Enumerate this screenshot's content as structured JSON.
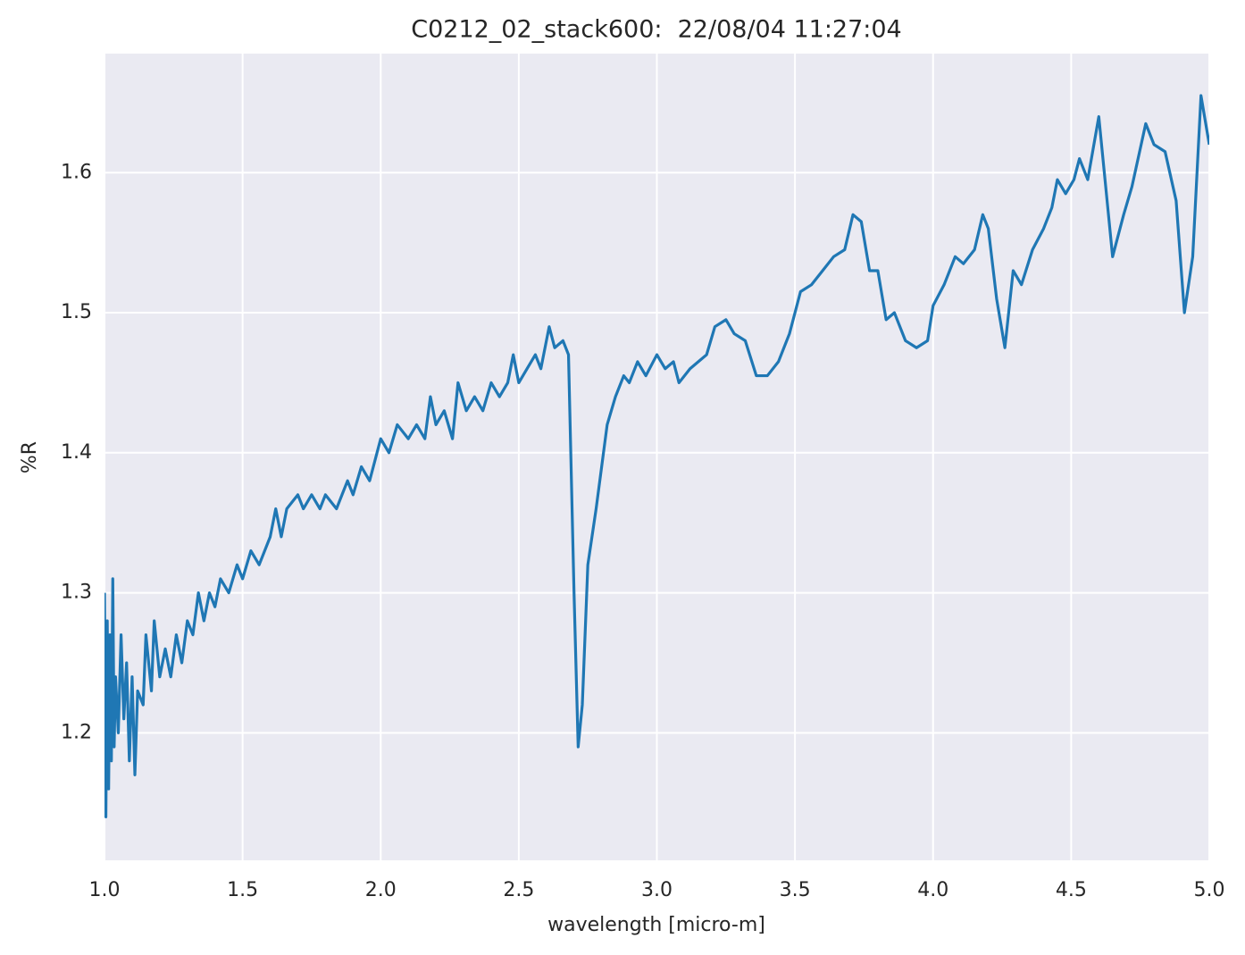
{
  "chart_data": {
    "type": "line",
    "title": "C0212_02_stack600:  22/08/04 11:27:04",
    "x_label": "wavelength [micro-m]",
    "y_label": "%R",
    "xlim": [
      1.0,
      5.0
    ],
    "ylim": [
      1.109,
      1.685
    ],
    "xticks": [
      {
        "value": 1.0,
        "label": "1.0"
      },
      1.5,
      {
        "value": 2.0,
        "label": "2.0"
      },
      2.5,
      {
        "value": 3.0,
        "label": "3.0"
      },
      3.5,
      {
        "value": 4.0,
        "label": "4.0"
      },
      4.5,
      {
        "value": 5.0,
        "label": "5.0"
      }
    ],
    "yticks": [
      1.2,
      1.3,
      1.4,
      1.5,
      1.6
    ],
    "grid": true,
    "x": [
      1.0,
      1.005,
      1.01,
      1.015,
      1.02,
      1.025,
      1.03,
      1.035,
      1.04,
      1.05,
      1.06,
      1.07,
      1.08,
      1.09,
      1.1,
      1.11,
      1.12,
      1.14,
      1.15,
      1.17,
      1.18,
      1.2,
      1.22,
      1.24,
      1.26,
      1.28,
      1.3,
      1.32,
      1.34,
      1.36,
      1.38,
      1.4,
      1.42,
      1.45,
      1.48,
      1.5,
      1.53,
      1.56,
      1.6,
      1.62,
      1.64,
      1.66,
      1.7,
      1.72,
      1.75,
      1.78,
      1.8,
      1.84,
      1.88,
      1.9,
      1.93,
      1.96,
      2.0,
      2.03,
      2.06,
      2.1,
      2.13,
      2.16,
      2.18,
      2.2,
      2.23,
      2.26,
      2.28,
      2.31,
      2.34,
      2.37,
      2.4,
      2.43,
      2.46,
      2.48,
      2.5,
      2.53,
      2.56,
      2.58,
      2.61,
      2.63,
      2.66,
      2.68,
      2.7,
      2.715,
      2.73,
      2.75,
      2.78,
      2.8,
      2.82,
      2.85,
      2.88,
      2.9,
      2.93,
      2.96,
      3.0,
      3.03,
      3.06,
      3.08,
      3.12,
      3.15,
      3.18,
      3.21,
      3.25,
      3.28,
      3.32,
      3.36,
      3.4,
      3.44,
      3.48,
      3.52,
      3.56,
      3.6,
      3.64,
      3.68,
      3.71,
      3.74,
      3.77,
      3.8,
      3.83,
      3.86,
      3.9,
      3.94,
      3.98,
      4.0,
      4.04,
      4.08,
      4.11,
      4.15,
      4.18,
      4.2,
      4.23,
      4.26,
      4.29,
      4.32,
      4.36,
      4.4,
      4.43,
      4.45,
      4.48,
      4.51,
      4.53,
      4.56,
      4.6,
      4.62,
      4.65,
      4.69,
      4.72,
      4.77,
      4.8,
      4.84,
      4.88,
      4.91,
      4.94,
      4.97,
      5.0
    ],
    "series": [
      {
        "color": "#1f77b4",
        "values": [
          1.3,
          1.14,
          1.28,
          1.16,
          1.27,
          1.18,
          1.31,
          1.19,
          1.24,
          1.2,
          1.27,
          1.21,
          1.25,
          1.18,
          1.24,
          1.17,
          1.23,
          1.22,
          1.27,
          1.23,
          1.28,
          1.24,
          1.26,
          1.24,
          1.27,
          1.25,
          1.28,
          1.27,
          1.3,
          1.28,
          1.3,
          1.29,
          1.31,
          1.3,
          1.32,
          1.31,
          1.33,
          1.32,
          1.34,
          1.36,
          1.34,
          1.36,
          1.37,
          1.36,
          1.37,
          1.36,
          1.37,
          1.36,
          1.38,
          1.37,
          1.39,
          1.38,
          1.41,
          1.4,
          1.42,
          1.41,
          1.42,
          1.41,
          1.44,
          1.42,
          1.43,
          1.41,
          1.45,
          1.43,
          1.44,
          1.43,
          1.45,
          1.44,
          1.45,
          1.47,
          1.45,
          1.46,
          1.47,
          1.46,
          1.49,
          1.475,
          1.48,
          1.47,
          1.3,
          1.19,
          1.22,
          1.32,
          1.36,
          1.39,
          1.42,
          1.44,
          1.455,
          1.45,
          1.465,
          1.455,
          1.47,
          1.46,
          1.465,
          1.45,
          1.46,
          1.465,
          1.47,
          1.49,
          1.495,
          1.485,
          1.48,
          1.455,
          1.455,
          1.465,
          1.485,
          1.515,
          1.52,
          1.53,
          1.54,
          1.545,
          1.57,
          1.565,
          1.53,
          1.53,
          1.495,
          1.5,
          1.48,
          1.475,
          1.48,
          1.505,
          1.52,
          1.54,
          1.535,
          1.545,
          1.57,
          1.56,
          1.51,
          1.475,
          1.53,
          1.52,
          1.545,
          1.56,
          1.575,
          1.595,
          1.585,
          1.595,
          1.61,
          1.595,
          1.64,
          1.6,
          1.54,
          1.57,
          1.59,
          1.635,
          1.62,
          1.615,
          1.58,
          1.5,
          1.54,
          1.655,
          1.62
        ]
      }
    ]
  }
}
